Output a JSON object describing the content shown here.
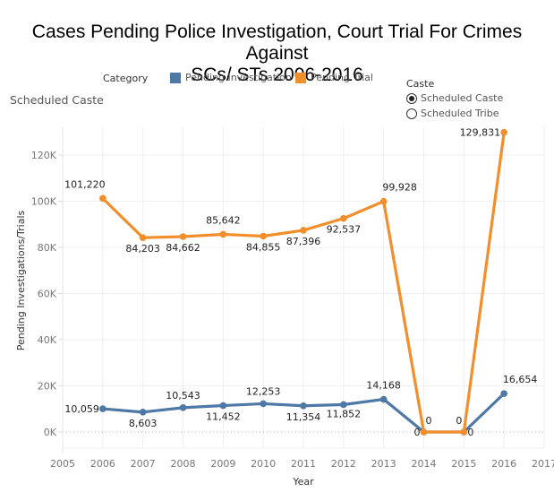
{
  "title_line1": "Cases Pending Police Investigation, Court Trial For Crimes Against",
  "title_line2": "SCs/ STs 2006-2016",
  "subtitle": "Scheduled Caste",
  "legend": {
    "title": "Category",
    "items": [
      {
        "label": "Pending Investigation",
        "color": "#4e79a7"
      },
      {
        "label": "Pending Trial",
        "color": "#f28e2b"
      }
    ]
  },
  "filter": {
    "title": "Caste",
    "options": [
      {
        "label": "Scheduled Caste",
        "selected": true
      },
      {
        "label": "Scheduled Tribe",
        "selected": false
      }
    ]
  },
  "chart_data": {
    "type": "line",
    "title": "Cases Pending Police Investigation, Court Trial For Crimes Against SCs/ STs 2006-2016",
    "subtitle": "Scheduled Caste",
    "xlabel": "Year",
    "ylabel": "Pending Investigations/Trials",
    "x": [
      2006,
      2007,
      2008,
      2009,
      2010,
      2011,
      2012,
      2013,
      2014,
      2015,
      2016
    ],
    "xlim": [
      2005,
      2017
    ],
    "xticks": [
      "2005",
      "2006",
      "2007",
      "2008",
      "2009",
      "2010",
      "2011",
      "2012",
      "2013",
      "2014",
      "2015",
      "2016",
      "2017"
    ],
    "ylim": [
      0,
      130000
    ],
    "yticks": [
      0,
      20000,
      40000,
      60000,
      80000,
      100000,
      120000
    ],
    "ytick_labels": [
      "0K",
      "20K",
      "40K",
      "60K",
      "80K",
      "100K",
      "120K"
    ],
    "grid": true,
    "legend_position": "top",
    "series": [
      {
        "name": "Pending Investigation",
        "color": "#4e79a7",
        "values": [
          10059,
          8603,
          10543,
          11452,
          12253,
          11354,
          11852,
          14168,
          0,
          0,
          16654
        ],
        "labels": [
          "10,059",
          "8,603",
          "10,543",
          "11,452",
          "12,253",
          "11,354",
          "11,852",
          "14,168",
          "0",
          "0",
          "16,654"
        ]
      },
      {
        "name": "Pending Trial",
        "color": "#f28e2b",
        "values": [
          101220,
          84203,
          84662,
          85642,
          84855,
          87396,
          92537,
          99928,
          0,
          0,
          129831
        ],
        "labels": [
          "101,220",
          "84,203",
          "84,662",
          "85,642",
          "84,855",
          "87,396",
          "92,537",
          "99,928",
          "0",
          "0",
          "129,831"
        ]
      }
    ]
  }
}
